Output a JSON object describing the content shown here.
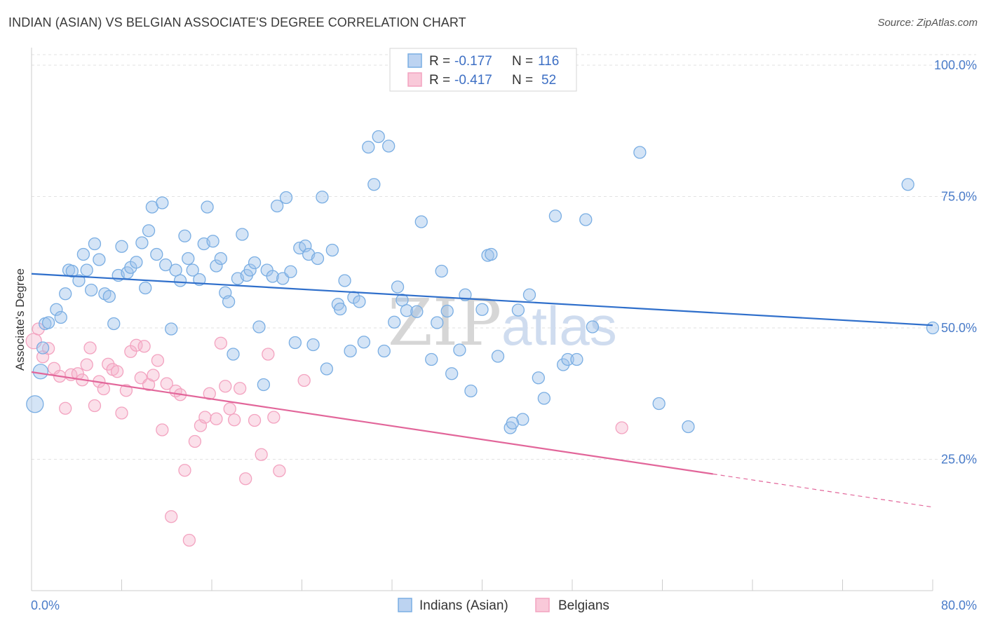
{
  "title": "INDIAN (ASIAN) VS BELGIAN ASSOCIATE'S DEGREE CORRELATION CHART",
  "source": "Source: ZipAtlas.com",
  "watermark": {
    "part1": "ZIP",
    "part2": "atlas"
  },
  "colors": {
    "blue": "#7aaee3",
    "blue_line": "#2f6fcb",
    "pink": "#f3a3c0",
    "pink_line": "#e2669a"
  },
  "legend": {
    "r_label": "R =",
    "n_label": "N =",
    "rows": [
      {
        "r": "-0.177",
        "n": "116"
      },
      {
        "r": "-0.417",
        "n": "52"
      }
    ]
  },
  "chart_data": {
    "type": "scatter",
    "title": "INDIAN (ASIAN) VS BELGIAN ASSOCIATE'S DEGREE CORRELATION CHART",
    "xlabel": "",
    "ylabel": "Associate's Degree",
    "xlim": [
      0,
      80
    ],
    "ylim": [
      0,
      102
    ],
    "x_tick_labels": [
      "0.0%",
      "80.0%"
    ],
    "y_ticks": [
      25,
      50,
      75,
      100
    ],
    "y_tick_labels": [
      "25.0%",
      "50.0%",
      "75.0%",
      "100.0%"
    ],
    "grid": true,
    "legend_position": "top-center",
    "series": [
      {
        "name": "Indians (Asian)",
        "trend": {
          "x0": 0,
          "y0": 60.3,
          "x1": 80,
          "y1": 50.5
        },
        "points": [
          [
            0.3,
            35.5
          ],
          [
            0.8,
            41.7
          ],
          [
            1.0,
            46.2
          ],
          [
            1.2,
            50.8
          ],
          [
            1.5,
            51.0
          ],
          [
            2.2,
            53.5
          ],
          [
            2.6,
            52.0
          ],
          [
            3.0,
            56.5
          ],
          [
            3.3,
            61.0
          ],
          [
            3.6,
            60.8
          ],
          [
            4.2,
            59.0
          ],
          [
            4.6,
            64.0
          ],
          [
            4.9,
            61.0
          ],
          [
            5.3,
            57.2
          ],
          [
            5.6,
            66.0
          ],
          [
            6.0,
            63.0
          ],
          [
            6.5,
            56.5
          ],
          [
            6.9,
            56.0
          ],
          [
            7.3,
            50.8
          ],
          [
            7.7,
            60.0
          ],
          [
            8.0,
            65.5
          ],
          [
            8.5,
            60.5
          ],
          [
            8.8,
            61.5
          ],
          [
            9.3,
            62.5
          ],
          [
            9.8,
            66.2
          ],
          [
            10.1,
            57.6
          ],
          [
            10.4,
            68.5
          ],
          [
            10.7,
            73.0
          ],
          [
            11.1,
            64.0
          ],
          [
            11.6,
            73.8
          ],
          [
            11.9,
            62.0
          ],
          [
            12.4,
            49.8
          ],
          [
            12.8,
            61.0
          ],
          [
            13.2,
            59.0
          ],
          [
            13.6,
            67.5
          ],
          [
            13.9,
            63.2
          ],
          [
            14.3,
            61.0
          ],
          [
            14.9,
            59.2
          ],
          [
            15.3,
            66.0
          ],
          [
            15.6,
            73.0
          ],
          [
            16.1,
            66.5
          ],
          [
            16.4,
            61.8
          ],
          [
            16.8,
            63.2
          ],
          [
            17.2,
            56.7
          ],
          [
            17.5,
            55.0
          ],
          [
            17.9,
            45.0
          ],
          [
            18.3,
            59.4
          ],
          [
            18.7,
            67.8
          ],
          [
            19.1,
            60.0
          ],
          [
            19.4,
            61.0
          ],
          [
            19.8,
            62.4
          ],
          [
            20.2,
            50.2
          ],
          [
            20.6,
            39.2
          ],
          [
            20.9,
            61.0
          ],
          [
            21.4,
            59.8
          ],
          [
            21.8,
            73.2
          ],
          [
            22.3,
            59.4
          ],
          [
            22.6,
            74.8
          ],
          [
            23.0,
            60.7
          ],
          [
            23.4,
            47.2
          ],
          [
            23.8,
            65.2
          ],
          [
            24.3,
            65.6
          ],
          [
            24.6,
            64.0
          ],
          [
            25.0,
            46.8
          ],
          [
            25.4,
            63.2
          ],
          [
            25.8,
            74.9
          ],
          [
            26.2,
            42.2
          ],
          [
            26.7,
            64.8
          ],
          [
            27.2,
            54.5
          ],
          [
            27.4,
            53.6
          ],
          [
            27.8,
            59.0
          ],
          [
            28.3,
            45.6
          ],
          [
            28.6,
            55.8
          ],
          [
            29.1,
            55.0
          ],
          [
            29.5,
            47.3
          ],
          [
            29.9,
            84.4
          ],
          [
            30.4,
            77.3
          ],
          [
            30.8,
            86.4
          ],
          [
            31.3,
            45.6
          ],
          [
            31.7,
            84.6
          ],
          [
            32.2,
            51.1
          ],
          [
            32.5,
            57.8
          ],
          [
            32.9,
            55.3
          ],
          [
            33.3,
            53.3
          ],
          [
            34.2,
            53.1
          ],
          [
            34.6,
            70.2
          ],
          [
            35.5,
            44.0
          ],
          [
            36.0,
            51.0
          ],
          [
            36.4,
            60.8
          ],
          [
            36.9,
            53.2
          ],
          [
            37.3,
            41.3
          ],
          [
            38.0,
            45.8
          ],
          [
            38.5,
            56.3
          ],
          [
            39.0,
            38.0
          ],
          [
            40.0,
            53.5
          ],
          [
            40.5,
            63.8
          ],
          [
            40.8,
            64.0
          ],
          [
            41.4,
            44.6
          ],
          [
            42.5,
            31.0
          ],
          [
            43.2,
            53.4
          ],
          [
            43.6,
            32.6
          ],
          [
            44.2,
            56.3
          ],
          [
            45.0,
            40.5
          ],
          [
            45.5,
            36.6
          ],
          [
            46.5,
            71.3
          ],
          [
            47.2,
            43.0
          ],
          [
            47.6,
            44.0
          ],
          [
            48.4,
            44.0
          ],
          [
            49.2,
            70.6
          ],
          [
            49.8,
            50.2
          ],
          [
            54.0,
            83.4
          ],
          [
            55.7,
            35.6
          ],
          [
            58.3,
            31.2
          ],
          [
            77.8,
            77.3
          ],
          [
            80.0,
            50.0
          ],
          [
            42.7,
            31.9
          ]
        ]
      },
      {
        "name": "Belgians",
        "trend": {
          "x0": 0,
          "y0": 41.6,
          "x1": 60.5,
          "y1": 22.2
        },
        "trend_extension": {
          "x0": 60.5,
          "y0": 22.2,
          "x1": 80,
          "y1": 15.9
        },
        "points": [
          [
            0.2,
            47.5
          ],
          [
            0.6,
            49.8
          ],
          [
            1.0,
            44.5
          ],
          [
            1.5,
            46.1
          ],
          [
            2.0,
            42.3
          ],
          [
            2.5,
            40.8
          ],
          [
            3.0,
            34.7
          ],
          [
            3.5,
            41.1
          ],
          [
            4.1,
            41.3
          ],
          [
            4.5,
            40.1
          ],
          [
            4.9,
            43.0
          ],
          [
            5.2,
            46.2
          ],
          [
            5.6,
            35.2
          ],
          [
            6.0,
            39.8
          ],
          [
            6.4,
            38.4
          ],
          [
            6.8,
            43.1
          ],
          [
            7.2,
            42.1
          ],
          [
            7.6,
            41.7
          ],
          [
            8.0,
            33.8
          ],
          [
            8.4,
            38.1
          ],
          [
            8.8,
            45.5
          ],
          [
            9.3,
            46.7
          ],
          [
            9.7,
            40.5
          ],
          [
            10.0,
            46.5
          ],
          [
            10.4,
            39.2
          ],
          [
            10.8,
            41.0
          ],
          [
            11.2,
            43.8
          ],
          [
            11.6,
            30.6
          ],
          [
            12.0,
            39.4
          ],
          [
            12.4,
            14.1
          ],
          [
            12.8,
            38.0
          ],
          [
            13.2,
            37.3
          ],
          [
            13.6,
            22.9
          ],
          [
            14.0,
            9.6
          ],
          [
            14.5,
            28.4
          ],
          [
            15.0,
            31.4
          ],
          [
            15.4,
            33.0
          ],
          [
            15.8,
            37.5
          ],
          [
            16.4,
            32.7
          ],
          [
            16.8,
            47.1
          ],
          [
            17.2,
            38.9
          ],
          [
            17.6,
            34.6
          ],
          [
            18.0,
            32.5
          ],
          [
            18.5,
            38.5
          ],
          [
            19.0,
            21.3
          ],
          [
            19.8,
            32.4
          ],
          [
            20.4,
            25.9
          ],
          [
            21.0,
            45.0
          ],
          [
            21.5,
            33.0
          ],
          [
            22.0,
            22.8
          ],
          [
            24.2,
            40.0
          ],
          [
            52.4,
            31.0
          ]
        ]
      }
    ]
  },
  "bottom_legend": [
    "Indians (Asian)",
    "Belgians"
  ]
}
